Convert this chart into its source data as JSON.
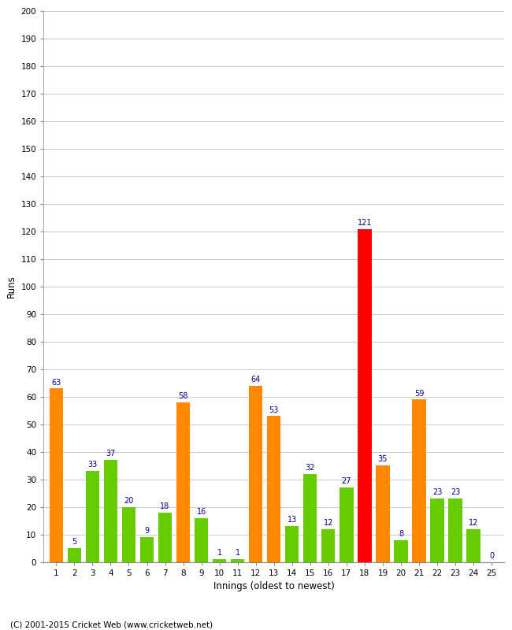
{
  "xlabel": "Innings (oldest to newest)",
  "ylabel": "Runs",
  "innings": [
    1,
    2,
    3,
    4,
    5,
    6,
    7,
    8,
    9,
    10,
    11,
    12,
    13,
    14,
    15,
    16,
    17,
    18,
    19,
    20,
    21,
    22,
    23,
    24,
    25
  ],
  "values": [
    63,
    5,
    33,
    37,
    20,
    9,
    18,
    58,
    16,
    1,
    1,
    64,
    53,
    13,
    32,
    12,
    27,
    121,
    35,
    8,
    59,
    23,
    23,
    12,
    0
  ],
  "colors": [
    "#ff8800",
    "#66cc00",
    "#66cc00",
    "#66cc00",
    "#66cc00",
    "#66cc00",
    "#66cc00",
    "#ff8800",
    "#66cc00",
    "#66cc00",
    "#66cc00",
    "#ff8800",
    "#ff8800",
    "#66cc00",
    "#66cc00",
    "#66cc00",
    "#66cc00",
    "#ff0000",
    "#ff8800",
    "#66cc00",
    "#ff8800",
    "#66cc00",
    "#66cc00",
    "#66cc00",
    "#66cc00"
  ],
  "ylim": [
    0,
    200
  ],
  "yticks": [
    0,
    10,
    20,
    30,
    40,
    50,
    60,
    70,
    80,
    90,
    100,
    110,
    120,
    130,
    140,
    150,
    160,
    170,
    180,
    190,
    200
  ],
  "label_color": "#000099",
  "label_fontsize": 7,
  "footer": "(C) 2001-2015 Cricket Web (www.cricketweb.net)",
  "background_color": "#ffffff",
  "grid_color": "#cccccc",
  "bar_width": 0.75
}
